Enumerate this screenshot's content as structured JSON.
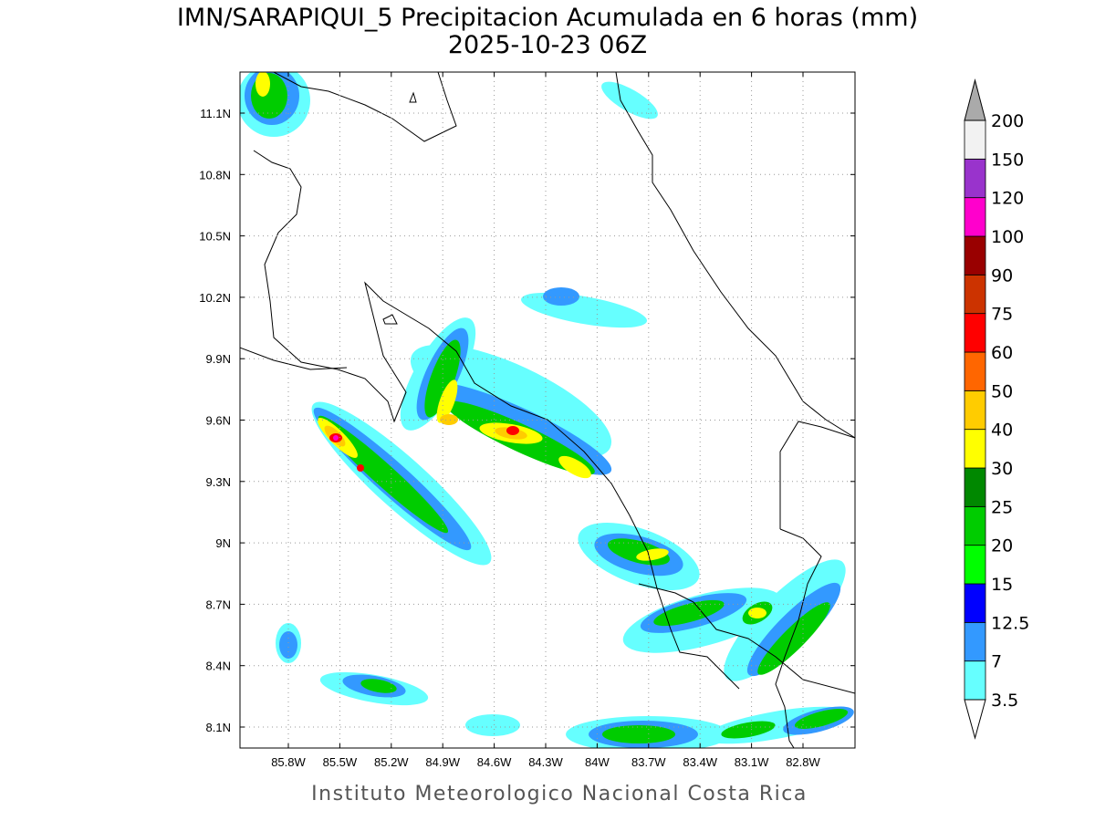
{
  "title": "IMN/SARAPIQUI_5 Precipitacion Acumulada en 6 horas (mm)",
  "subtitle": "2025-10-23 06Z",
  "map": {
    "lon_ticks": [
      "85.8W",
      "85.5W",
      "85.2W",
      "84.9W",
      "84.6W",
      "84.3W",
      "84W",
      "83.7W",
      "83.4W",
      "83.1W",
      "82.8W"
    ],
    "lat_ticks": [
      "11.1N",
      "10.8N",
      "10.5N",
      "10.2N",
      "9.9N",
      "9.6N",
      "9.3N",
      "9N",
      "8.7N",
      "8.4N",
      "8.1N"
    ]
  },
  "colorbar": {
    "levels": [
      3.5,
      7,
      12.5,
      15,
      20,
      25,
      30,
      40,
      50,
      60,
      75,
      90,
      100,
      120,
      150,
      200
    ],
    "colors": [
      "#66ffff",
      "#3399ff",
      "#0000ff",
      "#00ff00",
      "#00cc00",
      "#008800",
      "#ffff00",
      "#ffcc00",
      "#ff6600",
      "#ff0000",
      "#cc3300",
      "#990000",
      "#ff00cc",
      "#9933cc",
      "#f2f2f2"
    ],
    "below_color": "#ffffff",
    "above_color": "#aaaaaa"
  },
  "footer": "Instituto Meteorologico Nacional Costa Rica"
}
